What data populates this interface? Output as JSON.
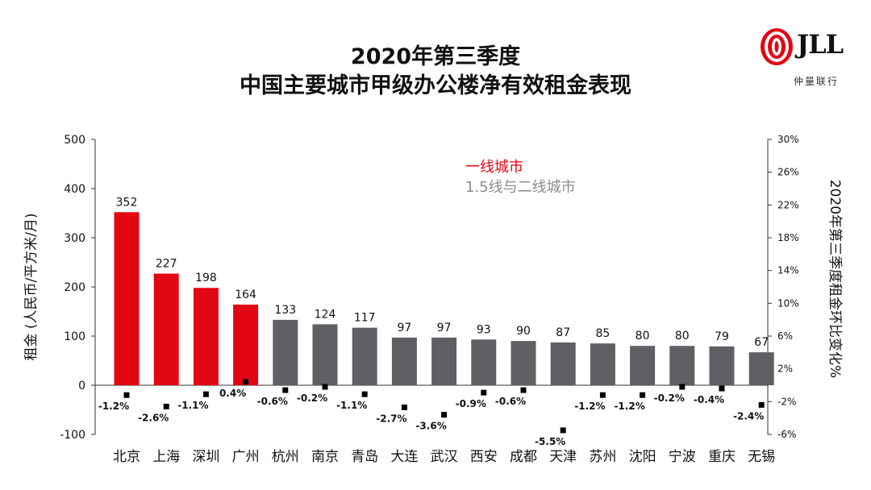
{
  "title_line1": "2020年第三季度",
  "title_line2": "中国主要城市甲级办公楼净有效租金表现",
  "logo": {
    "text": "JLL",
    "subtitle": "仲量联行",
    "ring_color": "#e30613"
  },
  "colors": {
    "tier1": "#e30613",
    "tier2": "#5f6064",
    "tier2_legend": "#8c8c8c",
    "marker": "#000000"
  },
  "chart_data": {
    "type": "bar",
    "categories": [
      "北京",
      "上海",
      "深圳",
      "广州",
      "杭州",
      "南京",
      "青岛",
      "大连",
      "武汉",
      "西安",
      "成都",
      "天津",
      "苏州",
      "沈阳",
      "宁波",
      "重庆",
      "无锡"
    ],
    "series": [
      {
        "name": "一线城市",
        "values": [
          352,
          227,
          198,
          164,
          null,
          null,
          null,
          null,
          null,
          null,
          null,
          null,
          null,
          null,
          null,
          null,
          null
        ]
      },
      {
        "name": "1.5线与二线城市",
        "values": [
          null,
          null,
          null,
          null,
          133,
          124,
          117,
          97,
          97,
          93,
          90,
          87,
          85,
          80,
          80,
          79,
          67
        ]
      }
    ],
    "rent_values": [
      352,
      227,
      198,
      164,
      133,
      124,
      117,
      97,
      97,
      93,
      90,
      87,
      85,
      80,
      80,
      79,
      67
    ],
    "rent_labels": [
      "352",
      "227",
      "198",
      "164",
      "133",
      "124",
      "117",
      "97",
      "97",
      "93",
      "90",
      "87",
      "85",
      "80",
      "80",
      "79",
      "67"
    ],
    "tiers": [
      1,
      1,
      1,
      1,
      2,
      2,
      2,
      2,
      2,
      2,
      2,
      2,
      2,
      2,
      2,
      2,
      2
    ],
    "qoq_change": [
      -1.2,
      -2.6,
      -1.1,
      0.4,
      -0.6,
      -0.2,
      -1.1,
      -2.7,
      -3.6,
      -0.9,
      -0.6,
      -5.5,
      -1.2,
      -1.2,
      -0.2,
      -0.4,
      -2.4
    ],
    "qoq_labels": [
      "-1.2%",
      "-2.6%",
      "-1.1%",
      "0.4%",
      "-0.6%",
      "-0.2%",
      "-1.1%",
      "-2.7%",
      "-3.6%",
      "-0.9%",
      "-0.6%",
      "-5.5%",
      "-1.2%",
      "-1.2%",
      "-0.2%",
      "-0.4%",
      "-2.4%"
    ],
    "ylabel": "租金 (人民币/平方米/月)",
    "y2label": "2020年第三季度租金环比变化%",
    "ylim": [
      -100,
      500
    ],
    "yticks": [
      -100,
      0,
      100,
      200,
      300,
      400,
      500
    ],
    "y2lim": [
      -6,
      30
    ],
    "y2ticks": [
      -6,
      -2,
      2,
      6,
      10,
      14,
      18,
      22,
      26,
      30
    ],
    "y2tick_labels": [
      "-6%",
      "-2%",
      "2%",
      "6%",
      "10%",
      "14%",
      "18%",
      "22%",
      "26%",
      "30%"
    ],
    "legend": {
      "position": "top-center",
      "entries": [
        "一线城市",
        "1.5线与二线城市"
      ]
    },
    "grid": false
  }
}
